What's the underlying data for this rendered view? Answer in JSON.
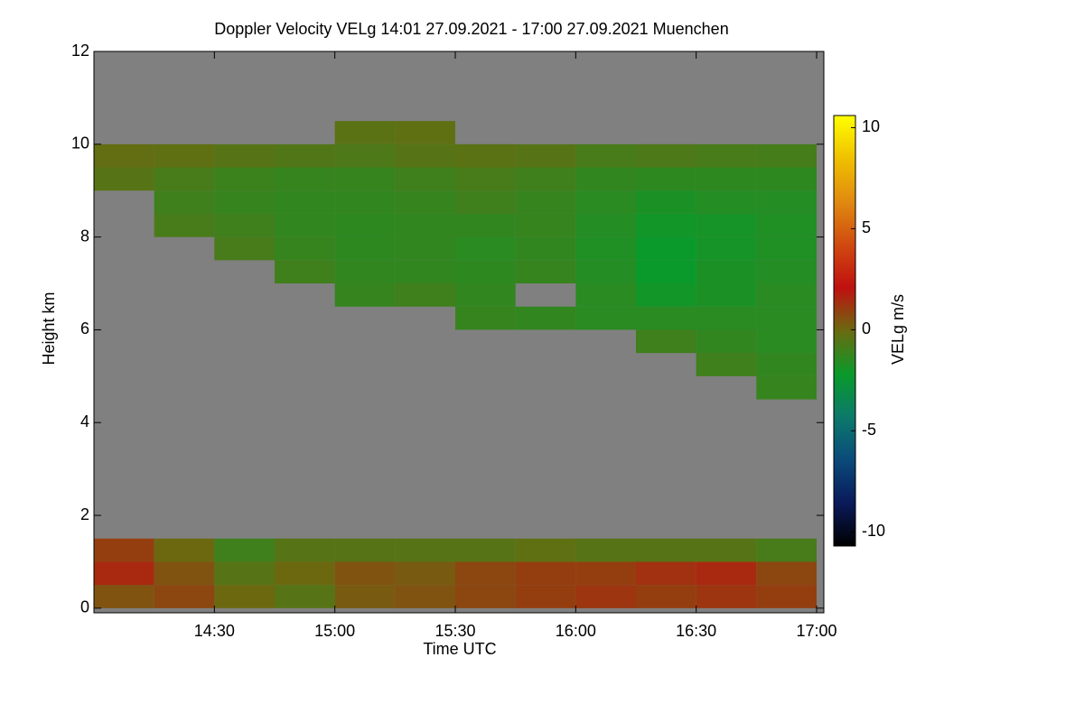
{
  "chart_data": {
    "type": "heatmap",
    "title": "Doppler Velocity VELg   14:01 27.09.2021 - 17:00 27.09.2021 Muenchen",
    "xlabel": "Time UTC",
    "ylabel": "Height km",
    "colorbar_label": "VELg m/s",
    "xlim": [
      14.0,
      17.03
    ],
    "xticks": [
      {
        "value": 14.5,
        "label": "14:30"
      },
      {
        "value": 15.0,
        "label": "15:00"
      },
      {
        "value": 15.5,
        "label": "15:30"
      },
      {
        "value": 16.0,
        "label": "16:00"
      },
      {
        "value": 16.5,
        "label": "16:30"
      },
      {
        "value": 17.0,
        "label": "17:00"
      }
    ],
    "ylim": [
      -0.1,
      12
    ],
    "yticks": [
      0,
      2,
      4,
      6,
      8,
      10,
      12
    ],
    "zlim": [
      -10.7,
      10.6
    ],
    "zticks": [
      -10,
      -5,
      0,
      5,
      10
    ],
    "colormap": [
      "#000000",
      "#0a1a5a",
      "#0b4a7a",
      "#0b7a6a",
      "#0a9a2a",
      "#6a6a10",
      "#c01010",
      "#d04a10",
      "#e08a10",
      "#f0c000",
      "#ffff00"
    ],
    "missing_color": "#808080",
    "x_bins": [
      14.0,
      14.25,
      14.5,
      14.75,
      15.0,
      15.25,
      15.5,
      15.75,
      16.0,
      16.25,
      16.5,
      16.75,
      17.0
    ],
    "y_bins": [
      0,
      0.5,
      1,
      1.5,
      2,
      2.5,
      3,
      3.5,
      4,
      4.5,
      5,
      5.5,
      6,
      6.5,
      7,
      7.5,
      8,
      8.5,
      9,
      9.5,
      10,
      10.5,
      11,
      11.5,
      12
    ],
    "z": [
      [
        0.5,
        0.8,
        0,
        -0.5,
        0.3,
        0.5,
        0.8,
        1,
        1.2,
        1,
        1.2,
        1
      ],
      [
        1.5,
        0.5,
        -0.5,
        0,
        0.5,
        0.3,
        0.8,
        1,
        1,
        1.3,
        1.5,
        0.8
      ],
      [
        1,
        0,
        -1,
        -0.5,
        -0.5,
        -0.5,
        -0.5,
        -0.3,
        -0.5,
        -0.5,
        -0.5,
        -0.8
      ],
      [
        null,
        null,
        null,
        null,
        null,
        null,
        null,
        null,
        null,
        null,
        null,
        null
      ],
      [
        null,
        null,
        null,
        null,
        null,
        null,
        null,
        null,
        null,
        null,
        null,
        null
      ],
      [
        null,
        null,
        null,
        null,
        null,
        null,
        null,
        null,
        null,
        null,
        null,
        null
      ],
      [
        null,
        null,
        null,
        null,
        null,
        null,
        null,
        null,
        null,
        null,
        null,
        null
      ],
      [
        null,
        null,
        null,
        null,
        null,
        null,
        null,
        null,
        null,
        null,
        null,
        null
      ],
      [
        null,
        null,
        null,
        null,
        null,
        null,
        null,
        null,
        null,
        null,
        null,
        null
      ],
      [
        null,
        null,
        null,
        null,
        null,
        null,
        null,
        null,
        null,
        null,
        null,
        -1.2
      ],
      [
        null,
        null,
        null,
        null,
        null,
        null,
        null,
        null,
        null,
        null,
        -1.0,
        -1.3
      ],
      [
        null,
        null,
        null,
        null,
        null,
        null,
        null,
        null,
        null,
        -1.0,
        -1.3,
        -1.5
      ],
      [
        null,
        null,
        null,
        null,
        null,
        null,
        -1.2,
        -1.3,
        -1.5,
        -1.5,
        -1.5,
        -1.5
      ],
      [
        null,
        null,
        null,
        null,
        -1.2,
        -1.0,
        -1.3,
        null,
        -1.5,
        -2,
        -1.8,
        -1.5
      ],
      [
        null,
        null,
        null,
        -1.0,
        -1.3,
        -1.3,
        -1.4,
        -1.2,
        -1.6,
        -2.2,
        -1.8,
        -1.6
      ],
      [
        null,
        null,
        -0.8,
        -1.2,
        -1.4,
        -1.3,
        -1.5,
        -1.3,
        -1.7,
        -2.2,
        -1.9,
        -1.7
      ],
      [
        null,
        -0.8,
        -1,
        -1.3,
        -1.4,
        -1.3,
        -1.3,
        -1.2,
        -1.6,
        -2,
        -1.9,
        -1.7
      ],
      [
        null,
        -1,
        -1.2,
        -1.3,
        -1.3,
        -1.2,
        -1.0,
        -1.2,
        -1.5,
        -1.8,
        -1.6,
        -1.6
      ],
      [
        -0.5,
        -0.8,
        -1.1,
        -1.2,
        -1.2,
        -1.0,
        -0.8,
        -1.0,
        -1.3,
        -1.4,
        -1.4,
        -1.4
      ],
      [
        -0.2,
        -0.3,
        -0.5,
        -0.6,
        -0.7,
        -0.5,
        -0.4,
        -0.5,
        -0.8,
        -0.7,
        -0.8,
        -0.9
      ],
      [
        null,
        null,
        null,
        null,
        -0.4,
        -0.3,
        null,
        null,
        null,
        null,
        null,
        null
      ],
      [
        null,
        null,
        null,
        null,
        null,
        null,
        null,
        null,
        null,
        null,
        null,
        null
      ],
      [
        null,
        null,
        null,
        null,
        null,
        null,
        null,
        null,
        null,
        null,
        null,
        null
      ],
      [
        null,
        null,
        null,
        null,
        null,
        null,
        null,
        null,
        null,
        null,
        null,
        null
      ]
    ]
  }
}
